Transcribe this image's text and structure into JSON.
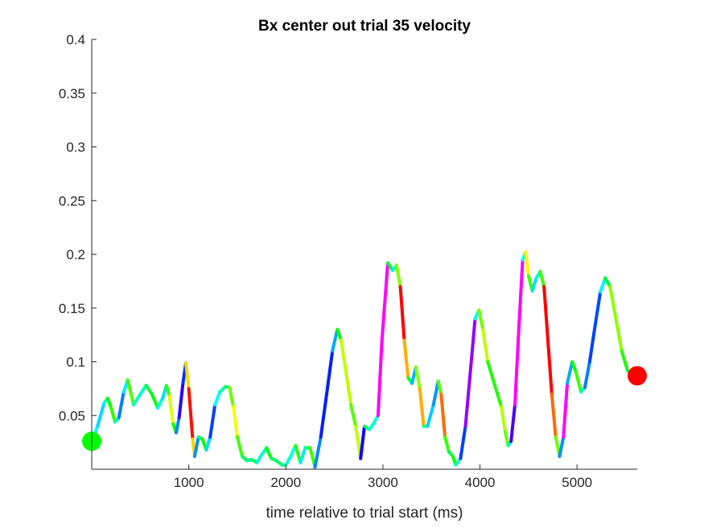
{
  "chart_data": {
    "type": "line",
    "title": "Bx  center out trial 35 velocity",
    "xlabel": "time relative to trial start (ms)",
    "ylabel": "",
    "xlim": [
      0,
      5620
    ],
    "ylim": [
      0,
      0.4
    ],
    "grid": false,
    "x_ticks": [
      1000,
      2000,
      3000,
      4000,
      5000
    ],
    "x_tick_labels": [
      "1000",
      "2000",
      "3000",
      "4000",
      "5000"
    ],
    "y_ticks": [
      0.05,
      0.1,
      0.15,
      0.2,
      0.25,
      0.3,
      0.35,
      0.4
    ],
    "y_tick_labels": [
      "0.05",
      "0.1",
      "0.15",
      "0.2",
      "0.25",
      "0.3",
      "0.35",
      "0.4"
    ],
    "series": [
      {
        "points": [
          [
            0,
            0.026
          ],
          [
            60,
            0.04
          ],
          [
            130,
            0.062
          ],
          [
            165,
            0.066
          ],
          [
            200,
            0.057
          ],
          [
            240,
            0.044
          ],
          [
            280,
            0.048
          ],
          [
            330,
            0.072
          ],
          [
            370,
            0.083
          ],
          [
            400,
            0.072
          ],
          [
            430,
            0.06
          ],
          [
            480,
            0.067
          ],
          [
            560,
            0.078
          ],
          [
            620,
            0.07
          ],
          [
            680,
            0.057
          ],
          [
            730,
            0.066
          ],
          [
            770,
            0.078
          ],
          [
            800,
            0.068
          ],
          [
            840,
            0.042
          ],
          [
            870,
            0.034
          ],
          [
            900,
            0.048
          ],
          [
            940,
            0.08
          ],
          [
            970,
            0.099
          ],
          [
            1000,
            0.075
          ],
          [
            1040,
            0.028
          ],
          [
            1060,
            0.012
          ],
          [
            1100,
            0.03
          ],
          [
            1140,
            0.028
          ],
          [
            1180,
            0.018
          ],
          [
            1220,
            0.03
          ],
          [
            1270,
            0.06
          ],
          [
            1320,
            0.072
          ],
          [
            1380,
            0.077
          ],
          [
            1420,
            0.076
          ],
          [
            1460,
            0.058
          ],
          [
            1500,
            0.03
          ],
          [
            1550,
            0.012
          ],
          [
            1600,
            0.008
          ],
          [
            1650,
            0.009
          ],
          [
            1700,
            0.006
          ],
          [
            1740,
            0.012
          ],
          [
            1800,
            0.02
          ],
          [
            1850,
            0.01
          ],
          [
            1900,
            0.008
          ],
          [
            1960,
            0.004
          ],
          [
            2000,
            0.004
          ],
          [
            2050,
            0.012
          ],
          [
            2100,
            0.022
          ],
          [
            2150,
            0.006
          ],
          [
            2200,
            0.02
          ],
          [
            2250,
            0.02
          ],
          [
            2300,
            0.002
          ],
          [
            2360,
            0.03
          ],
          [
            2420,
            0.07
          ],
          [
            2480,
            0.11
          ],
          [
            2530,
            0.13
          ],
          [
            2570,
            0.12
          ],
          [
            2620,
            0.09
          ],
          [
            2670,
            0.06
          ],
          [
            2720,
            0.04
          ],
          [
            2770,
            0.01
          ],
          [
            2810,
            0.04
          ],
          [
            2860,
            0.037
          ],
          [
            2900,
            0.042
          ],
          [
            2950,
            0.05
          ],
          [
            2990,
            0.12
          ],
          [
            3050,
            0.192
          ],
          [
            3100,
            0.185
          ],
          [
            3140,
            0.19
          ],
          [
            3180,
            0.17
          ],
          [
            3220,
            0.12
          ],
          [
            3260,
            0.085
          ],
          [
            3300,
            0.08
          ],
          [
            3340,
            0.095
          ],
          [
            3380,
            0.075
          ],
          [
            3420,
            0.04
          ],
          [
            3460,
            0.04
          ],
          [
            3520,
            0.06
          ],
          [
            3570,
            0.082
          ],
          [
            3600,
            0.07
          ],
          [
            3640,
            0.03
          ],
          [
            3680,
            0.016
          ],
          [
            3720,
            0.012
          ],
          [
            3750,
            0.004
          ],
          [
            3800,
            0.01
          ],
          [
            3850,
            0.04
          ],
          [
            3900,
            0.09
          ],
          [
            3950,
            0.14
          ],
          [
            3990,
            0.148
          ],
          [
            4030,
            0.13
          ],
          [
            4080,
            0.1
          ],
          [
            4130,
            0.085
          ],
          [
            4180,
            0.07
          ],
          [
            4220,
            0.058
          ],
          [
            4260,
            0.035
          ],
          [
            4290,
            0.022
          ],
          [
            4320,
            0.026
          ],
          [
            4360,
            0.06
          ],
          [
            4400,
            0.13
          ],
          [
            4440,
            0.195
          ],
          [
            4470,
            0.202
          ],
          [
            4500,
            0.18
          ],
          [
            4540,
            0.166
          ],
          [
            4580,
            0.178
          ],
          [
            4620,
            0.184
          ],
          [
            4660,
            0.17
          ],
          [
            4700,
            0.12
          ],
          [
            4740,
            0.07
          ],
          [
            4780,
            0.03
          ],
          [
            4820,
            0.012
          ],
          [
            4860,
            0.03
          ],
          [
            4900,
            0.08
          ],
          [
            4950,
            0.1
          ],
          [
            4990,
            0.09
          ],
          [
            5040,
            0.072
          ],
          [
            5080,
            0.076
          ],
          [
            5130,
            0.1
          ],
          [
            5180,
            0.13
          ],
          [
            5240,
            0.165
          ],
          [
            5290,
            0.178
          ],
          [
            5340,
            0.17
          ],
          [
            5400,
            0.14
          ],
          [
            5460,
            0.11
          ],
          [
            5520,
            0.092
          ],
          [
            5580,
            0.087
          ],
          [
            5620,
            0.087
          ]
        ]
      }
    ],
    "colormap": "hsv",
    "start_marker": {
      "x": 0,
      "y": 0.026,
      "color": "#00ff00"
    },
    "end_marker": {
      "x": 5620,
      "y": 0.087,
      "color": "#ff0000"
    }
  }
}
